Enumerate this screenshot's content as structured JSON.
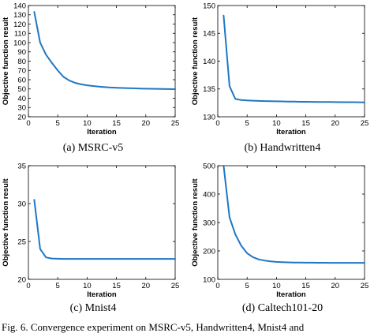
{
  "chart_data": [
    {
      "type": "line",
      "caption": "(a) MSRC-v5",
      "xlabel": "Iteration",
      "ylabel": "Objective function result",
      "xlim": [
        0,
        25
      ],
      "ylim": [
        20,
        140
      ],
      "xticks": [
        0,
        5,
        10,
        15,
        20,
        25
      ],
      "yticks": [
        20,
        30,
        40,
        50,
        60,
        70,
        80,
        90,
        100,
        110,
        120,
        130,
        140
      ],
      "color": "#1f77c4",
      "x": [
        1,
        2,
        3,
        4,
        5,
        6,
        7,
        8,
        9,
        10,
        11,
        12,
        13,
        14,
        15,
        16,
        17,
        18,
        19,
        20,
        21,
        22,
        23,
        24,
        25
      ],
      "y": [
        133,
        100,
        87,
        78,
        70,
        63,
        59,
        56.5,
        55,
        54,
        53.2,
        52.5,
        52,
        51.6,
        51.3,
        51.1,
        50.9,
        50.7,
        50.5,
        50.3,
        50.2,
        50.1,
        50,
        49.9,
        49.8
      ]
    },
    {
      "type": "line",
      "caption": "(b) Handwritten4",
      "xlabel": "Iteration",
      "ylabel": "Objective function result",
      "xlim": [
        0,
        25
      ],
      "ylim": [
        130,
        150
      ],
      "xticks": [
        0,
        5,
        10,
        15,
        20,
        25
      ],
      "yticks": [
        130,
        135,
        140,
        145,
        150
      ],
      "color": "#1f77c4",
      "x": [
        1,
        2,
        3,
        4,
        5,
        6,
        7,
        8,
        9,
        10,
        11,
        12,
        13,
        14,
        15,
        16,
        17,
        18,
        19,
        20,
        21,
        22,
        23,
        24,
        25
      ],
      "y": [
        148.2,
        135.5,
        133.2,
        133,
        132.95,
        132.9,
        132.85,
        132.82,
        132.8,
        132.78,
        132.76,
        132.74,
        132.72,
        132.7,
        132.69,
        132.68,
        132.67,
        132.66,
        132.65,
        132.64,
        132.63,
        132.62,
        132.62,
        132.61,
        132.6
      ]
    },
    {
      "type": "line",
      "caption": "(c) Mnist4",
      "xlabel": "Iteration",
      "ylabel": "Objective function result",
      "xlim": [
        0,
        25
      ],
      "ylim": [
        20,
        35
      ],
      "xticks": [
        0,
        5,
        10,
        15,
        20,
        25
      ],
      "yticks": [
        20,
        25,
        30,
        35
      ],
      "color": "#1f77c4",
      "x": [
        1,
        2,
        3,
        4,
        5,
        6,
        7,
        8,
        9,
        10,
        11,
        12,
        13,
        14,
        15,
        16,
        17,
        18,
        19,
        20,
        21,
        22,
        23,
        24,
        25
      ],
      "y": [
        30.5,
        24,
        22.9,
        22.75,
        22.72,
        22.7,
        22.7,
        22.7,
        22.7,
        22.7,
        22.7,
        22.7,
        22.7,
        22.7,
        22.7,
        22.7,
        22.7,
        22.7,
        22.7,
        22.7,
        22.7,
        22.7,
        22.7,
        22.7,
        22.7
      ]
    },
    {
      "type": "line",
      "caption": "(d) Caltech101-20",
      "xlabel": "Iteration",
      "ylabel": "Objective function result",
      "xlim": [
        0,
        25
      ],
      "ylim": [
        100,
        500
      ],
      "xticks": [
        0,
        5,
        10,
        15,
        20,
        25
      ],
      "yticks": [
        100,
        200,
        300,
        400,
        500
      ],
      "color": "#1f77c4",
      "x": [
        1,
        2,
        3,
        4,
        5,
        6,
        7,
        8,
        9,
        10,
        11,
        12,
        13,
        14,
        15,
        16,
        17,
        18,
        19,
        20,
        21,
        22,
        23,
        24,
        25
      ],
      "y": [
        500,
        318,
        258,
        218,
        192,
        178,
        170,
        166,
        163,
        161.5,
        160.5,
        159.8,
        159.3,
        159,
        158.7,
        158.5,
        158.3,
        158.2,
        158.1,
        158,
        158,
        158,
        158,
        158,
        158
      ]
    }
  ],
  "figure_caption": "Fig. 6.   Convergence experiment on MSRC-v5, Handwritten4, Mnist4 and"
}
